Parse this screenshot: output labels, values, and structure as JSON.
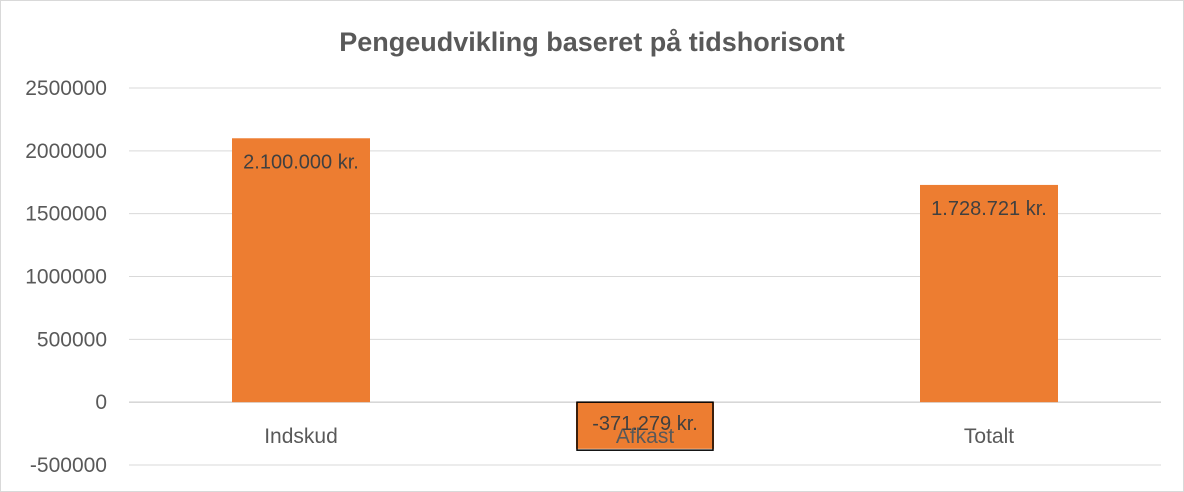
{
  "chart_data": {
    "type": "bar",
    "title": "Pengeudvikling baseret på tidshorisont",
    "xlabel": "",
    "ylabel": "",
    "categories": [
      "Indskud",
      "Afkast",
      "Totalt"
    ],
    "values": [
      2100000,
      -371279,
      1728721
    ],
    "data_labels": [
      "2.100.000 kr.",
      "-371.279 kr.",
      "1.728.721 kr."
    ],
    "ylim": [
      -500000,
      2500000
    ],
    "yticks": [
      2500000,
      2000000,
      1500000,
      1000000,
      500000,
      0,
      -500000
    ],
    "grid": true,
    "legend": "none",
    "bar_color": "#ED7D31"
  }
}
